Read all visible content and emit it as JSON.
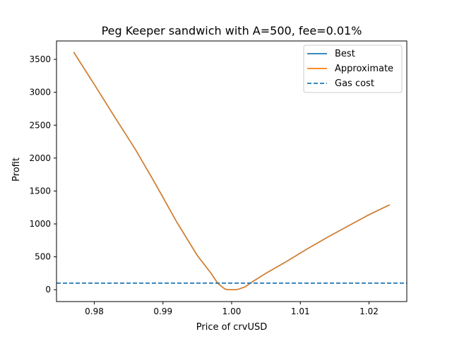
{
  "chart_data": {
    "type": "line",
    "title": "Peg Keeper sandwich with A=500, fee=0.01%",
    "xlabel": "Price of crvUSD",
    "ylabel": "Profit",
    "xlim": [
      0.9745,
      1.0255
    ],
    "ylim": [
      -180,
      3780
    ],
    "xticks": [
      0.98,
      0.99,
      1.0,
      1.01,
      1.02
    ],
    "xtick_labels": [
      "0.98",
      "0.99",
      "1.00",
      "1.01",
      "1.02"
    ],
    "yticks": [
      0,
      500,
      1000,
      1500,
      2000,
      2500,
      3000,
      3500
    ],
    "ytick_labels": [
      "0",
      "500",
      "1000",
      "1500",
      "2000",
      "2500",
      "3000",
      "3500"
    ],
    "grid": false,
    "legend_position": "top-right",
    "series": [
      {
        "name": "Best",
        "color": "#1f77b4",
        "style": "solid",
        "x": [
          0.977,
          0.98,
          0.983,
          0.986,
          0.989,
          0.992,
          0.995,
          0.997,
          0.998,
          0.999,
          0.9995,
          1.0,
          1.0005,
          1.001,
          1.002,
          1.003,
          1.005,
          1.008,
          1.011,
          1.014,
          1.017,
          1.02,
          1.023
        ],
        "y": [
          3610,
          3120,
          2620,
          2130,
          1590,
          1030,
          520,
          250,
          95,
          12,
          0,
          0,
          0,
          8,
          45,
          120,
          250,
          430,
          620,
          800,
          970,
          1140,
          1290
        ]
      },
      {
        "name": "Approximate",
        "color": "#ff7f0e",
        "style": "solid",
        "x": [
          0.977,
          0.98,
          0.983,
          0.986,
          0.989,
          0.992,
          0.995,
          0.997,
          0.998,
          0.999,
          0.9995,
          1.0,
          1.0005,
          1.001,
          1.002,
          1.003,
          1.005,
          1.008,
          1.011,
          1.014,
          1.017,
          1.02,
          1.023
        ],
        "y": [
          3610,
          3120,
          2620,
          2130,
          1590,
          1030,
          520,
          250,
          95,
          12,
          0,
          0,
          0,
          8,
          45,
          120,
          250,
          430,
          620,
          800,
          970,
          1140,
          1290
        ]
      },
      {
        "name": "Gas cost",
        "color": "#1f77b4",
        "style": "dashed",
        "hline": 100
      }
    ]
  }
}
